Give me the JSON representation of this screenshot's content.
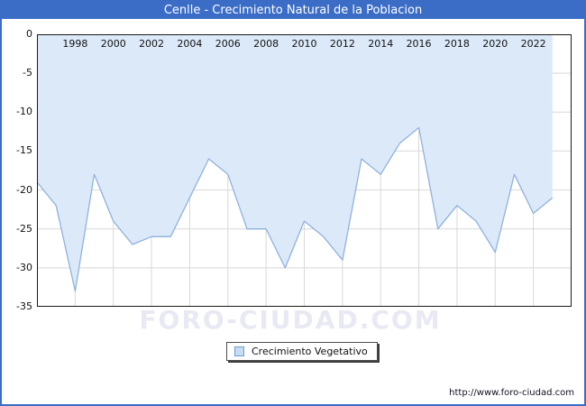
{
  "window": {
    "title": "Cenlle - Crecimiento Natural de la Poblacion"
  },
  "legend": {
    "label": "Crecimiento Vegetativo"
  },
  "watermark": "FORO-CIUDAD.COM",
  "footer": {
    "url": "http://www.foro-ciudad.com"
  },
  "colors": {
    "titlebar": "#3b6dc7",
    "frame_border": "#3b6dc7",
    "area_fill": "#dbe9f9",
    "line": "#8fb2de",
    "gridline": "#d8d8d8",
    "plot_border": "#1b1b1b",
    "watermark": "#e9e9f3"
  },
  "chart_data": {
    "type": "area",
    "title": "Cenlle - Crecimiento Natural de la Poblacion",
    "xlabel": "",
    "ylabel": "",
    "xlim": [
      1996,
      2024
    ],
    "ylim": [
      -35,
      0
    ],
    "grid": true,
    "legend_position": "bottom-center",
    "x_ticks": [
      1998,
      2000,
      2002,
      2004,
      2006,
      2008,
      2010,
      2012,
      2014,
      2016,
      2018,
      2020,
      2022
    ],
    "y_ticks": [
      0,
      -5,
      -10,
      -15,
      -20,
      -25,
      -30,
      -35
    ],
    "series": [
      {
        "name": "Crecimiento Vegetativo",
        "x": [
          1996,
          1997,
          1998,
          1999,
          2000,
          2001,
          2002,
          2003,
          2004,
          2005,
          2006,
          2007,
          2008,
          2009,
          2010,
          2011,
          2012,
          2013,
          2014,
          2015,
          2016,
          2017,
          2018,
          2019,
          2020,
          2021,
          2022,
          2023
        ],
        "values": [
          -19,
          -22,
          -33,
          -18,
          -24,
          -27,
          -26,
          -26,
          -21,
          -16,
          -18,
          -25,
          -25,
          -30,
          -24,
          -26,
          -29,
          -16,
          -18,
          -14,
          -12,
          -25,
          -22,
          -24,
          -28,
          -18,
          -23,
          -21
        ]
      }
    ]
  }
}
